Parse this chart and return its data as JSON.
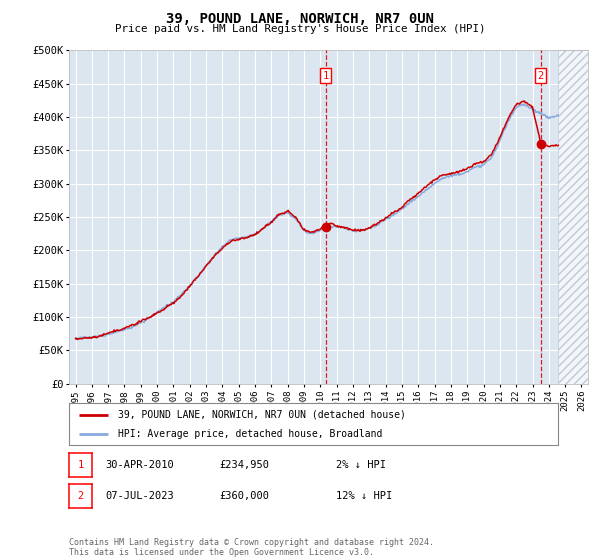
{
  "title": "39, POUND LANE, NORWICH, NR7 0UN",
  "subtitle": "Price paid vs. HM Land Registry's House Price Index (HPI)",
  "legend_line1": "39, POUND LANE, NORWICH, NR7 0UN (detached house)",
  "legend_line2": "HPI: Average price, detached house, Broadland",
  "annotation1": {
    "label": "1",
    "date": "30-APR-2010",
    "price": "£234,950",
    "hpi": "2% ↓ HPI"
  },
  "annotation2": {
    "label": "2",
    "date": "07-JUL-2023",
    "price": "£360,000",
    "hpi": "12% ↓ HPI"
  },
  "footer": "Contains HM Land Registry data © Crown copyright and database right 2024.\nThis data is licensed under the Open Government Licence v3.0.",
  "ylim": [
    0,
    500000
  ],
  "yticks": [
    0,
    50000,
    100000,
    150000,
    200000,
    250000,
    300000,
    350000,
    400000,
    450000,
    500000
  ],
  "ytick_labels": [
    "£0",
    "£50K",
    "£100K",
    "£150K",
    "£200K",
    "£250K",
    "£300K",
    "£350K",
    "£400K",
    "£450K",
    "£500K"
  ],
  "hatch_start_year": 2024.58,
  "marker1_x": 2010.33,
  "marker1_y": 234950,
  "marker2_x": 2023.5,
  "marker2_y": 360000,
  "line_color_red": "#cc0000",
  "line_color_blue": "#88aadd",
  "background_color": "#dce6f0",
  "plot_bg_color": "#dce6f0",
  "grid_color": "#ffffff",
  "xlim_left": 1994.6,
  "xlim_right": 2026.4
}
